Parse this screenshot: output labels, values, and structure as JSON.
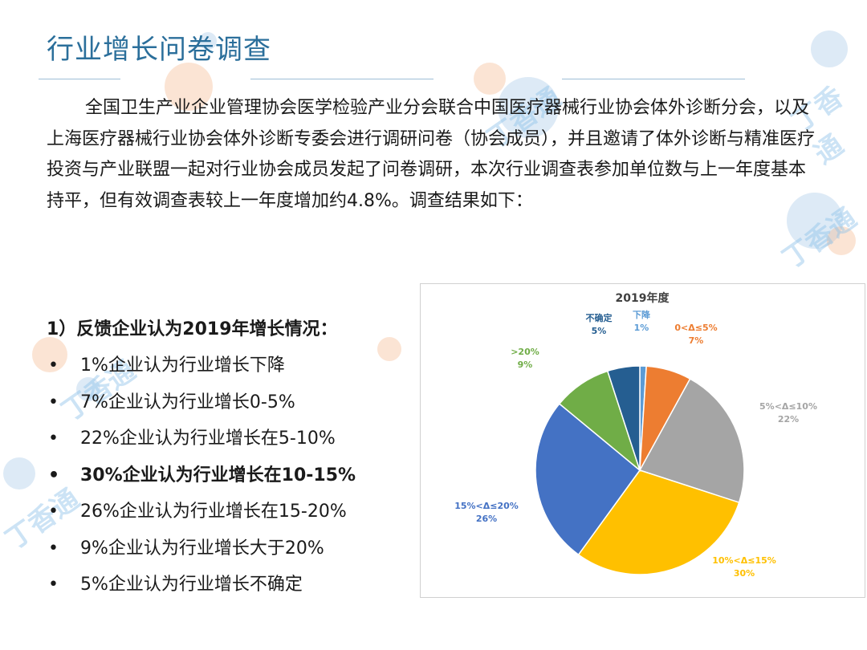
{
  "title": "行业增长问卷调查",
  "intro": "全国卫生产业企业管理协会医学检验产业分会联合中国医疗器械行业协会体外诊断分会，以及上海医疗器械行业协会体外诊断专委会进行调研问卷（协会成员），并且邀请了体外诊断与精准医疗投资与产业联盟一起对行业协会成员发起了问卷调研，本次行业调查表参加单位数与上一年度基本持平，但有效调查表较上一年度增加约4.8%。调查结果如下：",
  "list_heading": "1）反馈企业认为2019年增长情况：",
  "findings": [
    {
      "text": "1%企业认为行业增长下降",
      "bold": false
    },
    {
      "text": "7%企业认为行业增长0-5%",
      "bold": false
    },
    {
      "text": "22%企业认为行业增长在5-10%",
      "bold": false
    },
    {
      "text": "30%企业认为行业增长在10-15%",
      "bold": true
    },
    {
      "text": "26%企业认为行业增长在15-20%",
      "bold": false
    },
    {
      "text": "9%企业认为行业增长大于20%",
      "bold": false
    },
    {
      "text": "5%企业认为行业增长不确定",
      "bold": false
    }
  ],
  "watermark": "丁香通",
  "chart_data": {
    "type": "pie",
    "title": "2019年度",
    "slices": [
      {
        "label": "下降",
        "value": 1,
        "value_label": "1%",
        "color": "#5b9bd5"
      },
      {
        "label": "0<Δ≤5%",
        "value": 7,
        "value_label": "7%",
        "color": "#ed7d31"
      },
      {
        "label": "5%<Δ≤10%",
        "value": 22,
        "value_label": "22%",
        "color": "#a5a5a5"
      },
      {
        "label": "10%<Δ≤15%",
        "value": 30,
        "value_label": "30%",
        "color": "#ffc000"
      },
      {
        "label": "15%<Δ≤20%",
        "value": 26,
        "value_label": "26%",
        "color": "#4472c4"
      },
      {
        "label": ">20%",
        "value": 9,
        "value_label": "9%",
        "color": "#70ad47"
      },
      {
        "label": "不确定",
        "value": 5,
        "value_label": "5%",
        "color": "#255e91"
      }
    ]
  }
}
